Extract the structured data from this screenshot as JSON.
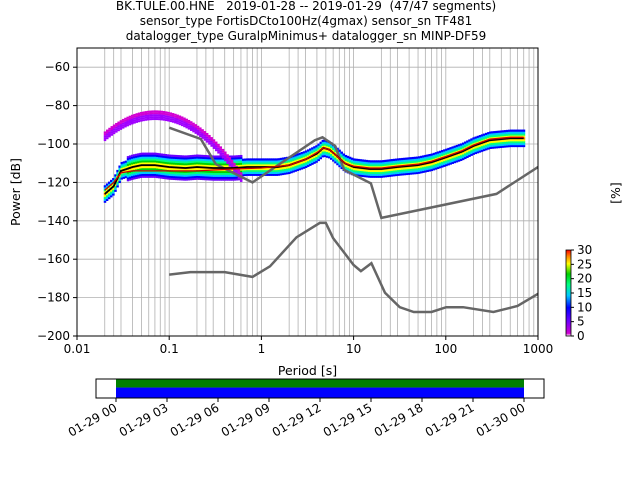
{
  "title_lines": [
    "BK.TULE.00.HNE   2019-01-28 -- 2019-01-29  (47/47 segments)",
    "sensor_type FortisDCto100Hz(4gmax) sensor_sn TF481",
    "datalogger_type GuralpMinimus+ datalogger_sn MINP-DF59"
  ],
  "chart_data": [
    {
      "type": "heatmap",
      "xlabel": "Period [s]",
      "ylabel": "Power [dB]",
      "xscale": "log",
      "xlim": [
        0.01,
        1000
      ],
      "ylim": [
        -200,
        -50
      ],
      "x_ticks": [
        0.01,
        0.1,
        1,
        10,
        100,
        1000
      ],
      "x_tick_labels": [
        "0.01",
        "0.1",
        "1",
        "10",
        "100",
        "1000"
      ],
      "y_ticks": [
        -200,
        -180,
        -160,
        -140,
        -120,
        -100,
        -80,
        -60
      ],
      "y_tick_labels": [
        "−200",
        "−180",
        "−160",
        "−140",
        "−120",
        "−100",
        "−80",
        "−60"
      ],
      "grid": true,
      "colorbar": {
        "label": "[%]",
        "range": [
          0,
          30
        ],
        "ticks": [
          0,
          5,
          10,
          15,
          20,
          25,
          30
        ],
        "tick_labels": [
          "0",
          "5",
          "10",
          "15",
          "20",
          "25",
          "30"
        ],
        "colormap": "pqlx"
      },
      "period_lines_x": [
        0.02,
        0.025,
        0.03,
        0.04,
        0.05,
        0.06,
        0.07,
        0.08,
        0.09,
        0.1,
        0.2,
        0.25,
        0.3,
        0.4,
        0.5,
        0.6,
        0.7,
        0.8,
        0.9,
        1,
        2,
        2.5,
        3,
        4,
        5,
        6,
        7,
        8,
        9,
        10,
        20,
        25,
        30,
        40,
        50,
        60,
        70,
        80,
        90,
        100,
        200,
        250,
        300,
        400,
        500,
        600,
        700,
        800,
        900
      ],
      "series": [
        {
          "kind": "high_noise_model",
          "color": "#666666",
          "x": [
            0.1,
            0.22,
            0.32,
            0.8,
            3.8,
            4.6,
            6.3,
            7.9,
            15.4,
            20,
            354.8,
            1000
          ],
          "y": [
            -91.5,
            -97.4,
            -110.5,
            -120,
            -98,
            -96.5,
            -101,
            -113.5,
            -120.5,
            -138.5,
            -126,
            -112
          ]
        },
        {
          "kind": "low_noise_model",
          "color": "#666666",
          "x": [
            0.1,
            0.17,
            0.4,
            0.8,
            1.24,
            2.4,
            4.3,
            5,
            6,
            10,
            12,
            15.6,
            21.9,
            31.6,
            45,
            70,
            101,
            154,
            328,
            600,
            1000
          ],
          "y": [
            -168,
            -166.7,
            -166.7,
            -169.2,
            -163.7,
            -148.6,
            -141.1,
            -141.1,
            -149,
            -163,
            -166.2,
            -162.1,
            -177.5,
            -185,
            -187.5,
            -187.5,
            -185,
            -185,
            -187.5,
            -184.4,
            -178
          ]
        },
        {
          "kind": "mode",
          "color": "#000000",
          "x": [
            0.02,
            0.025,
            0.03,
            0.04,
            0.05,
            0.07,
            0.1,
            0.15,
            0.2,
            0.3,
            0.5,
            0.7,
            1,
            1.5,
            2,
            3,
            4,
            4.7,
            5.5,
            6.5,
            8,
            10,
            15,
            20,
            30,
            50,
            70,
            100,
            150,
            200,
            300,
            500,
            700
          ],
          "y": [
            -126,
            -122,
            -114,
            -112,
            -111,
            -111,
            -112,
            -112.5,
            -112,
            -112.5,
            -112.5,
            -112,
            -112,
            -112,
            -111,
            -108,
            -105,
            -102,
            -103,
            -106,
            -110,
            -112,
            -113,
            -113,
            -112,
            -111,
            -109.5,
            -107,
            -104,
            -101,
            -98,
            -97,
            -97
          ]
        },
        {
          "kind": "mean",
          "color": "#cc0000",
          "x": [
            0.02,
            0.025,
            0.03,
            0.04,
            0.05,
            0.1,
            0.2,
            0.5,
            1,
            2,
            3,
            4,
            4.7,
            5.5,
            6.5,
            8,
            10,
            15,
            20,
            30,
            50,
            70,
            100,
            150,
            200,
            300,
            500,
            700
          ],
          "y": [
            -124,
            -120,
            -115,
            -114,
            -114,
            -114,
            -114,
            -113,
            -112.5,
            -111,
            -108,
            -104.5,
            -102,
            -103,
            -106,
            -110,
            -111.5,
            -112.5,
            -112.5,
            -111.5,
            -110.5,
            -109,
            -106.5,
            -103.5,
            -100.5,
            -97.5,
            -96.5,
            -96.5
          ]
        }
      ]
    },
    {
      "type": "timeline",
      "x_tick_labels": [
        "01-29 00",
        "01-29 03",
        "01-29 06",
        "01-29 09",
        "01-29 12",
        "01-29 15",
        "01-29 18",
        "01-29 21",
        "01-30 00"
      ],
      "data_coverage_color": "#008000",
      "psd_coverage_color": "#0000ff",
      "coverage_start": "01-29 00",
      "coverage_end": "01-30 00"
    }
  ]
}
